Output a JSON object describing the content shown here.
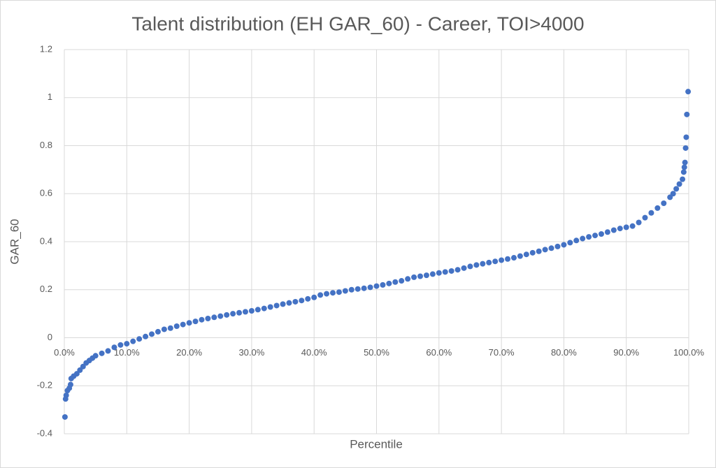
{
  "chart_data": {
    "type": "scatter",
    "title": "Talent distribution (EH GAR_60) - Career, TOI>4000",
    "x_label": "Percentile",
    "y_label": "GAR_60",
    "color": "#4472c4",
    "grid": true,
    "xlim": [
      0,
      1
    ],
    "ylim": [
      -0.4,
      1.2
    ],
    "xticks": [
      {
        "value": 0,
        "label": "0.0%"
      },
      {
        "value": 0.1,
        "label": "10.0%"
      },
      {
        "value": 0.2,
        "label": "20.0%"
      },
      {
        "value": 0.3,
        "label": "30.0%"
      },
      {
        "value": 0.4,
        "label": "40.0%"
      },
      {
        "value": 0.5,
        "label": "50.0%"
      },
      {
        "value": 0.6,
        "label": "60.0%"
      },
      {
        "value": 0.7,
        "label": "70.0%"
      },
      {
        "value": 0.8,
        "label": "80.0%"
      },
      {
        "value": 0.9,
        "label": "90.0%"
      },
      {
        "value": 1,
        "label": "100.0%"
      }
    ],
    "yticks": [
      -0.4,
      -0.2,
      0,
      0.2,
      0.4,
      0.6,
      0.8,
      1,
      1.2
    ],
    "x": [
      0.001,
      0.002,
      0.003,
      0.005,
      0.008,
      0.01,
      0.011,
      0.015,
      0.02,
      0.025,
      0.03,
      0.035,
      0.04,
      0.045,
      0.05,
      0.06,
      0.07,
      0.08,
      0.09,
      0.1,
      0.11,
      0.12,
      0.13,
      0.14,
      0.15,
      0.16,
      0.17,
      0.18,
      0.19,
      0.2,
      0.21,
      0.22,
      0.23,
      0.24,
      0.25,
      0.26,
      0.27,
      0.28,
      0.29,
      0.3,
      0.31,
      0.32,
      0.33,
      0.34,
      0.35,
      0.36,
      0.37,
      0.38,
      0.39,
      0.4,
      0.41,
      0.42,
      0.43,
      0.44,
      0.45,
      0.46,
      0.47,
      0.48,
      0.49,
      0.5,
      0.51,
      0.52,
      0.53,
      0.54,
      0.55,
      0.56,
      0.57,
      0.58,
      0.59,
      0.6,
      0.61,
      0.62,
      0.63,
      0.64,
      0.65,
      0.66,
      0.67,
      0.68,
      0.69,
      0.7,
      0.71,
      0.72,
      0.73,
      0.74,
      0.75,
      0.76,
      0.77,
      0.78,
      0.79,
      0.8,
      0.81,
      0.82,
      0.83,
      0.84,
      0.85,
      0.86,
      0.87,
      0.88,
      0.89,
      0.9,
      0.91,
      0.92,
      0.93,
      0.94,
      0.95,
      0.96,
      0.97,
      0.975,
      0.98,
      0.985,
      0.99,
      0.992,
      0.993,
      0.994,
      0.995,
      0.996,
      0.997,
      0.999
    ],
    "values": [
      -0.33,
      -0.255,
      -0.24,
      -0.22,
      -0.21,
      -0.195,
      -0.17,
      -0.16,
      -0.15,
      -0.135,
      -0.12,
      -0.105,
      -0.095,
      -0.085,
      -0.075,
      -0.065,
      -0.055,
      -0.04,
      -0.03,
      -0.025,
      -0.015,
      -0.005,
      0.005,
      0.015,
      0.025,
      0.035,
      0.04,
      0.048,
      0.055,
      0.062,
      0.068,
      0.075,
      0.08,
      0.085,
      0.09,
      0.095,
      0.1,
      0.104,
      0.108,
      0.112,
      0.117,
      0.122,
      0.128,
      0.134,
      0.14,
      0.145,
      0.15,
      0.155,
      0.162,
      0.168,
      0.178,
      0.183,
      0.187,
      0.19,
      0.195,
      0.2,
      0.203,
      0.206,
      0.21,
      0.215,
      0.22,
      0.226,
      0.232,
      0.237,
      0.245,
      0.252,
      0.256,
      0.26,
      0.265,
      0.27,
      0.274,
      0.278,
      0.283,
      0.29,
      0.297,
      0.303,
      0.308,
      0.313,
      0.318,
      0.323,
      0.328,
      0.333,
      0.34,
      0.347,
      0.354,
      0.36,
      0.367,
      0.373,
      0.38,
      0.387,
      0.396,
      0.405,
      0.413,
      0.42,
      0.426,
      0.432,
      0.44,
      0.448,
      0.455,
      0.46,
      0.465,
      0.48,
      0.5,
      0.52,
      0.54,
      0.56,
      0.585,
      0.6,
      0.62,
      0.64,
      0.66,
      0.69,
      0.71,
      0.73,
      0.79,
      0.835,
      0.93,
      1.025
    ]
  }
}
